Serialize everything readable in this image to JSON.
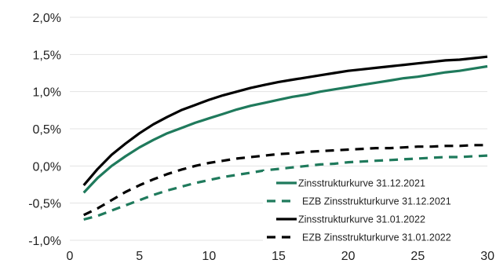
{
  "chart_data": {
    "type": "line",
    "title": "",
    "xlabel": "",
    "ylabel": "",
    "xlim": [
      0,
      30
    ],
    "ylim": [
      -1.0,
      2.0
    ],
    "grid": "horizontal",
    "legend_position": "bottom-right",
    "x_ticks": [
      {
        "value": 0,
        "label": "0"
      },
      {
        "value": 5,
        "label": "5"
      },
      {
        "value": 10,
        "label": "10"
      },
      {
        "value": 15,
        "label": "15"
      },
      {
        "value": 20,
        "label": "20"
      },
      {
        "value": 25,
        "label": "25"
      },
      {
        "value": 30,
        "label": "30"
      }
    ],
    "y_ticks": [
      {
        "value": 2.0,
        "label": "2,0%"
      },
      {
        "value": 1.5,
        "label": "1,5%"
      },
      {
        "value": 1.0,
        "label": "1,0%"
      },
      {
        "value": 0.5,
        "label": "0,5%"
      },
      {
        "value": 0.0,
        "label": "0,0%"
      },
      {
        "value": -0.5,
        "label": "-0,5%"
      },
      {
        "value": -1.0,
        "label": "-1,0%"
      }
    ],
    "x": [
      1,
      2,
      3,
      4,
      5,
      6,
      7,
      8,
      9,
      10,
      11,
      12,
      13,
      14,
      15,
      16,
      17,
      18,
      19,
      20,
      21,
      22,
      23,
      24,
      25,
      26,
      27,
      28,
      29,
      30
    ],
    "series": [
      {
        "name": "Zinsstrukturkurve 31.12.2021",
        "color": "#1f7a5c",
        "dash": "solid",
        "values": [
          -0.36,
          -0.16,
          0.0,
          0.13,
          0.25,
          0.35,
          0.44,
          0.51,
          0.58,
          0.64,
          0.7,
          0.76,
          0.81,
          0.85,
          0.89,
          0.93,
          0.96,
          1.0,
          1.03,
          1.06,
          1.09,
          1.12,
          1.15,
          1.18,
          1.2,
          1.23,
          1.26,
          1.28,
          1.31,
          1.34
        ]
      },
      {
        "name": "EZB Zinsstrukturkurve 31.12.2021",
        "color": "#1f7a5c",
        "dash": "dashed",
        "values": [
          -0.72,
          -0.67,
          -0.6,
          -0.53,
          -0.46,
          -0.39,
          -0.33,
          -0.28,
          -0.23,
          -0.19,
          -0.15,
          -0.12,
          -0.09,
          -0.06,
          -0.04,
          -0.02,
          0.0,
          0.02,
          0.03,
          0.05,
          0.06,
          0.07,
          0.08,
          0.09,
          0.1,
          0.11,
          0.12,
          0.12,
          0.13,
          0.14
        ]
      },
      {
        "name": "Zinsstrukturkurve 31.01.2022",
        "color": "#000000",
        "dash": "solid",
        "values": [
          -0.26,
          -0.04,
          0.15,
          0.3,
          0.44,
          0.56,
          0.66,
          0.75,
          0.82,
          0.89,
          0.95,
          1.0,
          1.05,
          1.09,
          1.13,
          1.16,
          1.19,
          1.22,
          1.25,
          1.28,
          1.3,
          1.32,
          1.34,
          1.36,
          1.38,
          1.4,
          1.42,
          1.43,
          1.45,
          1.47
        ]
      },
      {
        "name": "EZB Zinsstrukturkurve 31.01.2022",
        "color": "#000000",
        "dash": "dashed",
        "values": [
          -0.66,
          -0.57,
          -0.46,
          -0.35,
          -0.26,
          -0.18,
          -0.11,
          -0.05,
          0.0,
          0.04,
          0.07,
          0.1,
          0.12,
          0.14,
          0.16,
          0.17,
          0.19,
          0.2,
          0.21,
          0.22,
          0.23,
          0.24,
          0.24,
          0.25,
          0.26,
          0.26,
          0.27,
          0.27,
          0.28,
          0.28
        ]
      }
    ]
  }
}
